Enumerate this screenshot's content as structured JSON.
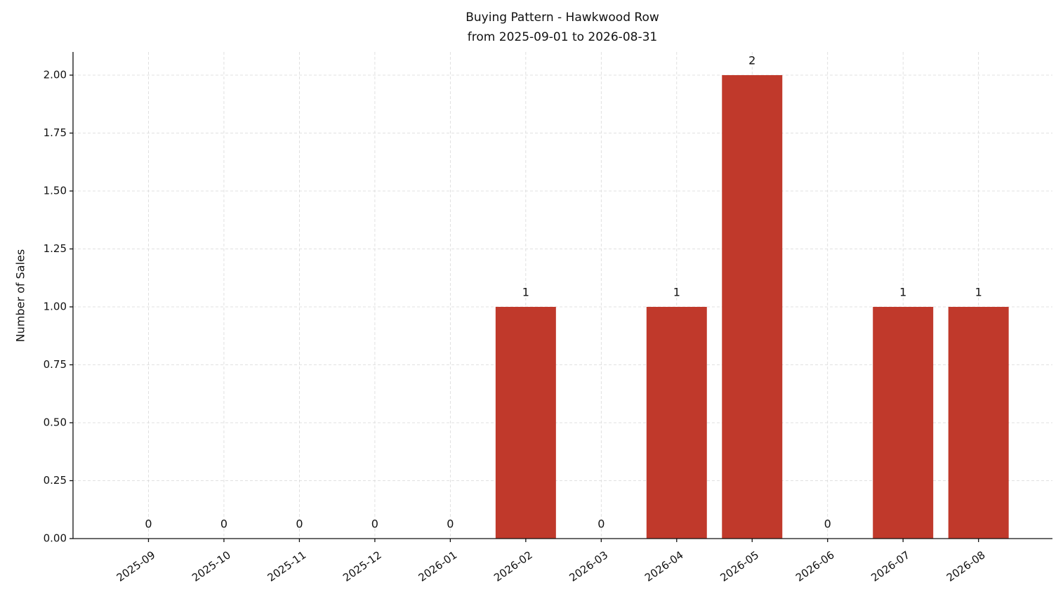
{
  "chart_data": {
    "type": "bar",
    "title": "Buying Pattern - Hawkwood Row",
    "subtitle": "from 2025-09-01 to 2026-08-31",
    "y_label": "Number of Sales",
    "categories": [
      "2025-09",
      "2025-10",
      "2025-11",
      "2025-12",
      "2026-01",
      "2026-02",
      "2026-03",
      "2026-04",
      "2026-05",
      "2026-06",
      "2026-07",
      "2026-08"
    ],
    "values": [
      0,
      0,
      0,
      0,
      0,
      1,
      0,
      1,
      2,
      0,
      1,
      1
    ],
    "color": "#c0392b",
    "ylim": [
      0,
      2.1
    ],
    "yticks": [
      {
        "value": 0,
        "label": "0.00"
      },
      {
        "value": 0.25,
        "label": "0.25"
      },
      {
        "value": 0.5,
        "label": "0.50"
      },
      {
        "value": 0.75,
        "label": "0.75"
      },
      {
        "value": 1,
        "label": "1.00"
      },
      {
        "value": 1.25,
        "label": "1.25"
      },
      {
        "value": 1.5,
        "label": "1.50"
      },
      {
        "value": 1.75,
        "label": "1.75"
      },
      {
        "value": 2,
        "label": "2.00"
      }
    ],
    "grid": true,
    "data_labels": true
  }
}
